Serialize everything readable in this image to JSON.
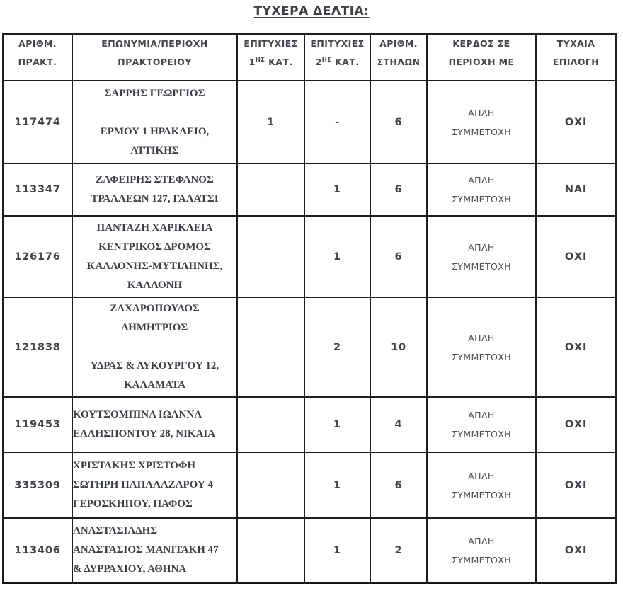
{
  "page": {
    "title": "ΤΥΧΕΡΑ ΔΕΛΤΙΑ:"
  },
  "colors": {
    "text_sans": "#43474b",
    "text_serif": "#3a3f45",
    "border": "#1e1e1e",
    "background": "#ffffff"
  },
  "table": {
    "headers": [
      {
        "id": "agency-number",
        "lines": [
          "ΑΡΙΘΜ.",
          "ΠΡΑΚΤ."
        ]
      },
      {
        "id": "agency-name",
        "lines": [
          "ΕΠΩΝΥΜΙΑ/ΠΕΡΙΟΧΗ",
          "ΠΡΑΚΤΟΡΕΙΟΥ"
        ]
      },
      {
        "id": "wins-cat1",
        "lines": [
          "ΕΠΙΤΥΧΙΕΣ",
          {
            "pre": "1",
            "sup": "ΗΣ",
            "post": " ΚΑΤ."
          }
        ]
      },
      {
        "id": "wins-cat2",
        "lines": [
          "ΕΠΙΤΥΧΙΕΣ",
          {
            "pre": "2",
            "sup": "ΗΣ",
            "post": " ΚΑΤ."
          }
        ]
      },
      {
        "id": "columns-count",
        "lines": [
          "ΑΡΙΘΜ.",
          "ΣΤΗΛΩΝ"
        ]
      },
      {
        "id": "profit-area",
        "lines": [
          "ΚΕΡΔΟΣ ΣΕ",
          "ΠΕΡΙΟΧΗ ΜΕ"
        ]
      },
      {
        "id": "random-selection",
        "lines": [
          "ΤΥΧΑΙΑ",
          "ΕΠΙΛΟΓΗ"
        ]
      }
    ],
    "rows": [
      {
        "number": "117474",
        "name_lines": [
          "ΣΑΡΡΗΣ ΓΕΩΡΓΙΟΣ",
          "",
          "ΕΡΜΟΥ 1 ΗΡΑΚΛΕΙΟ,",
          "ΑΤΤΙΚΗΣ"
        ],
        "name_align": "center",
        "cat1": "1",
        "cat2": "-",
        "columns": "6",
        "profit_lines": [
          "ΑΠΛΗ",
          "ΣΥΜΜΕΤΟΧΗ"
        ],
        "random": "ΟΧΙ"
      },
      {
        "number": "113347",
        "name_lines": [
          "ΖΑΦΕΙΡΗΣ ΣΤΕΦΑΝΟΣ",
          "ΤΡΑΛΛΕΩΝ 127, ΓΑΛΑΤΣΙ"
        ],
        "name_align": "center",
        "cat1": "",
        "cat2": "1",
        "columns": "6",
        "profit_lines": [
          "ΑΠΛΗ",
          "ΣΥΜΜΕΤΟΧΗ"
        ],
        "random": "ΝΑΙ"
      },
      {
        "number": "126176",
        "name_lines": [
          "ΠΑΝΤΑΖΗ ΧΑΡΙΚΛΕΙΑ",
          "ΚΕΝΤΡΙΚΟΣ ΔΡΟΜΟΣ",
          "ΚΑΛΛΟΝΗΣ-ΜΥΤΙΛΗΝΗΣ,",
          "ΚΑΛΛΟΝΗ"
        ],
        "name_align": "center",
        "cat1": "",
        "cat2": "1",
        "columns": "6",
        "profit_lines": [
          "ΑΠΛΗ",
          "ΣΥΜΜΕΤΟΧΗ"
        ],
        "random": "ΟΧΙ"
      },
      {
        "number": "121838",
        "name_lines": [
          "ΖΑΧΑΡΟΠΟΥΛΟΣ",
          "ΔΗΜΗΤΡΙΟΣ",
          "",
          "ΥΔΡΑΣ & ΛΥΚΟΥΡΓΟΥ 12,",
          "ΚΑΛΑΜΑΤΑ"
        ],
        "name_align": "center",
        "cat1": "",
        "cat2": "2",
        "columns": "10",
        "profit_lines": [
          "ΑΠΛΗ",
          "ΣΥΜΜΕΤΟΧΗ"
        ],
        "random": "ΟΧΙ"
      },
      {
        "number": "119453",
        "name_lines": [
          "ΚΟΥΤΣΟΜΠΙΝΑ ΙΩΑΝΝΑ",
          "ΕΛΛΗΣΠΟΝΤΟΥ 28, ΝΙΚΑΙΑ"
        ],
        "name_align": "left",
        "cat1": "",
        "cat2": "1",
        "columns": "4",
        "profit_lines": [
          "ΑΠΛΗ",
          "ΣΥΜΜΕΤΟΧΗ"
        ],
        "random": "ΟΧΙ"
      },
      {
        "number": "335309",
        "name_lines": [
          "ΧΡΙΣΤΑΚΗΣ ΧΡΙΣΤΟΦΗ",
          "ΣΩΤΗΡΗ ΠΑΠΑΛΑΖΑΡΟΥ 4",
          "ΓΕΡΟΣΚΗΠΟΥ, ΠΑΦΟΣ"
        ],
        "name_align": "left",
        "cat1": "",
        "cat2": "1",
        "columns": "6",
        "profit_lines": [
          "ΑΠΛΗ",
          "ΣΥΜΜΕΤΟΧΗ"
        ],
        "random": "ΟΧΙ"
      },
      {
        "number": "113406",
        "name_lines": [
          "ΑΝΑΣΤΑΣΙΑΔΗΣ",
          "ΑΝΑΣΤΑΣΙΟΣ ΜΑΝΙΤΑΚΗ 47",
          "& ΔΥΡΡΑΧΙΟΥ, ΑΘΗΝΑ"
        ],
        "name_align": "left",
        "cat1": "",
        "cat2": "1",
        "columns": "2",
        "profit_lines": [
          "ΑΠΛΗ",
          "ΣΥΜΜΕΤΟΧΗ"
        ],
        "random": "ΟΧΙ"
      }
    ]
  }
}
